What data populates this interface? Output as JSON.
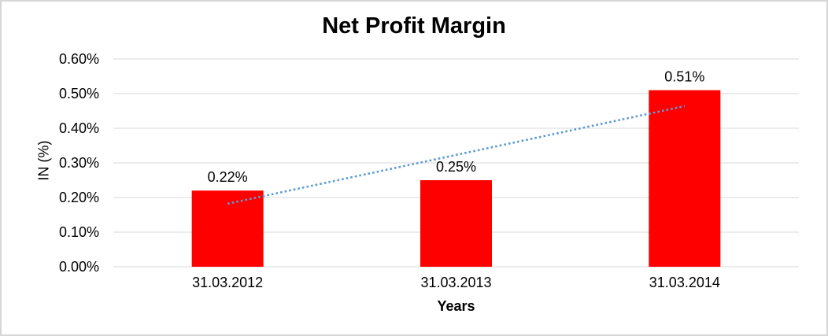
{
  "chart_data": {
    "type": "bar",
    "title": "Net Profit Margin",
    "xlabel": "Years",
    "ylabel": "IN (%)",
    "categories": [
      "31.03.2012",
      "31.03.2013",
      "31.03.2014"
    ],
    "values": [
      0.22,
      0.25,
      0.51
    ],
    "data_labels": [
      "0.22%",
      "0.25%",
      "0.51%"
    ],
    "ylim": [
      0,
      0.6
    ],
    "y_ticks": [
      {
        "label": "0.00%",
        "value": 0.0
      },
      {
        "label": "0.10%",
        "value": 0.1
      },
      {
        "label": "0.20%",
        "value": 0.2
      },
      {
        "label": "0.30%",
        "value": 0.3
      },
      {
        "label": "0.40%",
        "value": 0.4
      },
      {
        "label": "0.50%",
        "value": 0.5
      },
      {
        "label": "0.60%",
        "value": 0.6
      }
    ],
    "grid": true,
    "legend": "none",
    "colors": {
      "bar": "#FF0000",
      "trendline": "#5B9BD5",
      "gridline": "#D9D9D9",
      "text": "#000000"
    },
    "trendline": {
      "type": "linear",
      "style": "dotted",
      "start_value": 0.182,
      "end_value": 0.464
    }
  }
}
